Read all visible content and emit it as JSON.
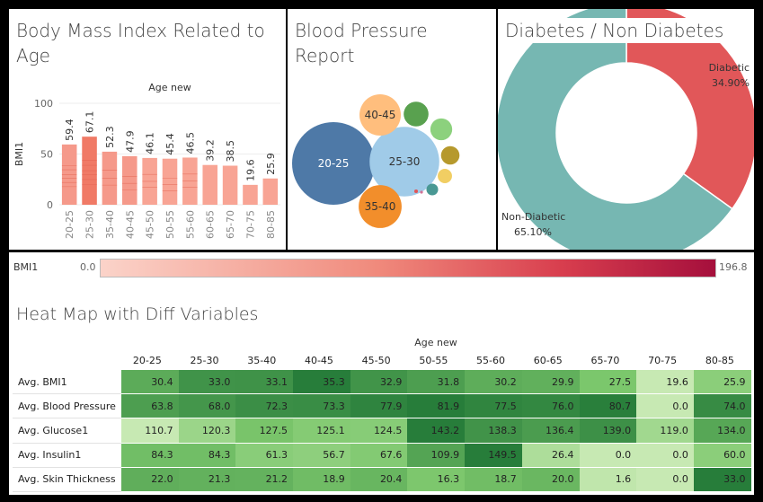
{
  "panel_bmi": {
    "title_line1": "Body Mass Index Related to",
    "title_line2": "Age"
  },
  "panel_bp": {
    "title_line1": "Blood Pressure",
    "title_line2": "Report"
  },
  "panel_diabetes": {
    "title": "Diabetes / Non Diabetes"
  },
  "legend": {
    "label": "BMI1",
    "min": "0.0",
    "max": "196.8",
    "color_low": "#fbd3c9",
    "color_high": "#a50f3c"
  },
  "panel_heatmap": {
    "title": "Heat Map with Diff Variables"
  },
  "chart_data": [
    {
      "type": "bar",
      "title": "Body Mass Index Related to Age",
      "xlabel": "Age new",
      "ylabel": "BMI1",
      "ylim": [
        0,
        100
      ],
      "yticks": [
        "0",
        "50",
        "100"
      ],
      "categories": [
        "20-25",
        "25-30",
        "35-40",
        "40-45",
        "45-50",
        "50-55",
        "55-60",
        "60-65",
        "65-70",
        "70-75",
        "80-85"
      ],
      "values": [
        59.4,
        67.1,
        52.3,
        47.9,
        46.1,
        45.4,
        46.5,
        39.2,
        38.5,
        19.6,
        25.9
      ],
      "value_labels": [
        "59.4",
        "67.1",
        "52.3",
        "47.9",
        "46.1",
        "45.4",
        "46.5",
        "39.2",
        "38.5",
        "19.6",
        "25.9"
      ]
    },
    {
      "type": "bubble",
      "title": "Blood Pressure Report",
      "bubbles": [
        {
          "label": "20-25",
          "color": "#4e79a7",
          "value": 100
        },
        {
          "label": "25-30",
          "color": "#a0cbe8",
          "value": 71
        },
        {
          "label": "35-40",
          "color": "#f28e2b",
          "value": 27
        },
        {
          "label": "40-45",
          "color": "#ffbe7d",
          "value": 25
        },
        {
          "label": "",
          "color": "#59a14f",
          "value": 9
        },
        {
          "label": "",
          "color": "#8cd17d",
          "value": 7
        },
        {
          "label": "",
          "color": "#b6992d",
          "value": 5
        },
        {
          "label": "",
          "color": "#f1ce63",
          "value": 3
        },
        {
          "label": "",
          "color": "#499894",
          "value": 2
        },
        {
          "label": "",
          "color": "#e15759",
          "value": 0.2
        },
        {
          "label": "",
          "color": "#d37295",
          "value": 0.1
        }
      ]
    },
    {
      "type": "pie",
      "title": "Diabetes / Non Diabetes",
      "slices": [
        {
          "label": "Diabetic",
          "pct_label": "34.90%",
          "value": 34.9,
          "color": "#e15759"
        },
        {
          "label": "Non-Diabetic",
          "pct_label": "65.10%",
          "value": 65.1,
          "color": "#76b7b2"
        }
      ]
    },
    {
      "type": "heatmap",
      "title": "Heat Map with Diff Variables",
      "xlabel": "Age new",
      "columns": [
        "20-25",
        "25-30",
        "35-40",
        "40-45",
        "45-50",
        "50-55",
        "55-60",
        "60-65",
        "65-70",
        "70-75",
        "80-85"
      ],
      "rows": [
        {
          "label": "Avg. BMI1",
          "values": [
            "30.4",
            "33.0",
            "33.1",
            "35.3",
            "32.9",
            "31.8",
            "30.2",
            "29.9",
            "27.5",
            "19.6",
            "25.9"
          ]
        },
        {
          "label": "Avg. Blood Pressure",
          "values": [
            "63.8",
            "68.0",
            "72.3",
            "73.3",
            "77.9",
            "81.9",
            "77.5",
            "76.0",
            "80.7",
            "0.0",
            "74.0"
          ]
        },
        {
          "label": "Avg. Glucose1",
          "values": [
            "110.7",
            "120.3",
            "127.5",
            "125.1",
            "124.5",
            "143.2",
            "138.3",
            "136.4",
            "139.0",
            "119.0",
            "134.0"
          ]
        },
        {
          "label": "Avg. Insulin1",
          "values": [
            "84.3",
            "84.3",
            "61.3",
            "56.7",
            "67.6",
            "109.9",
            "149.5",
            "26.4",
            "0.0",
            "0.0",
            "60.0"
          ]
        },
        {
          "label": "Avg. Skin Thickness",
          "values": [
            "22.0",
            "21.3",
            "21.2",
            "18.9",
            "20.4",
            "16.3",
            "18.7",
            "20.0",
            "1.6",
            "0.0",
            "33.0"
          ]
        }
      ]
    }
  ]
}
